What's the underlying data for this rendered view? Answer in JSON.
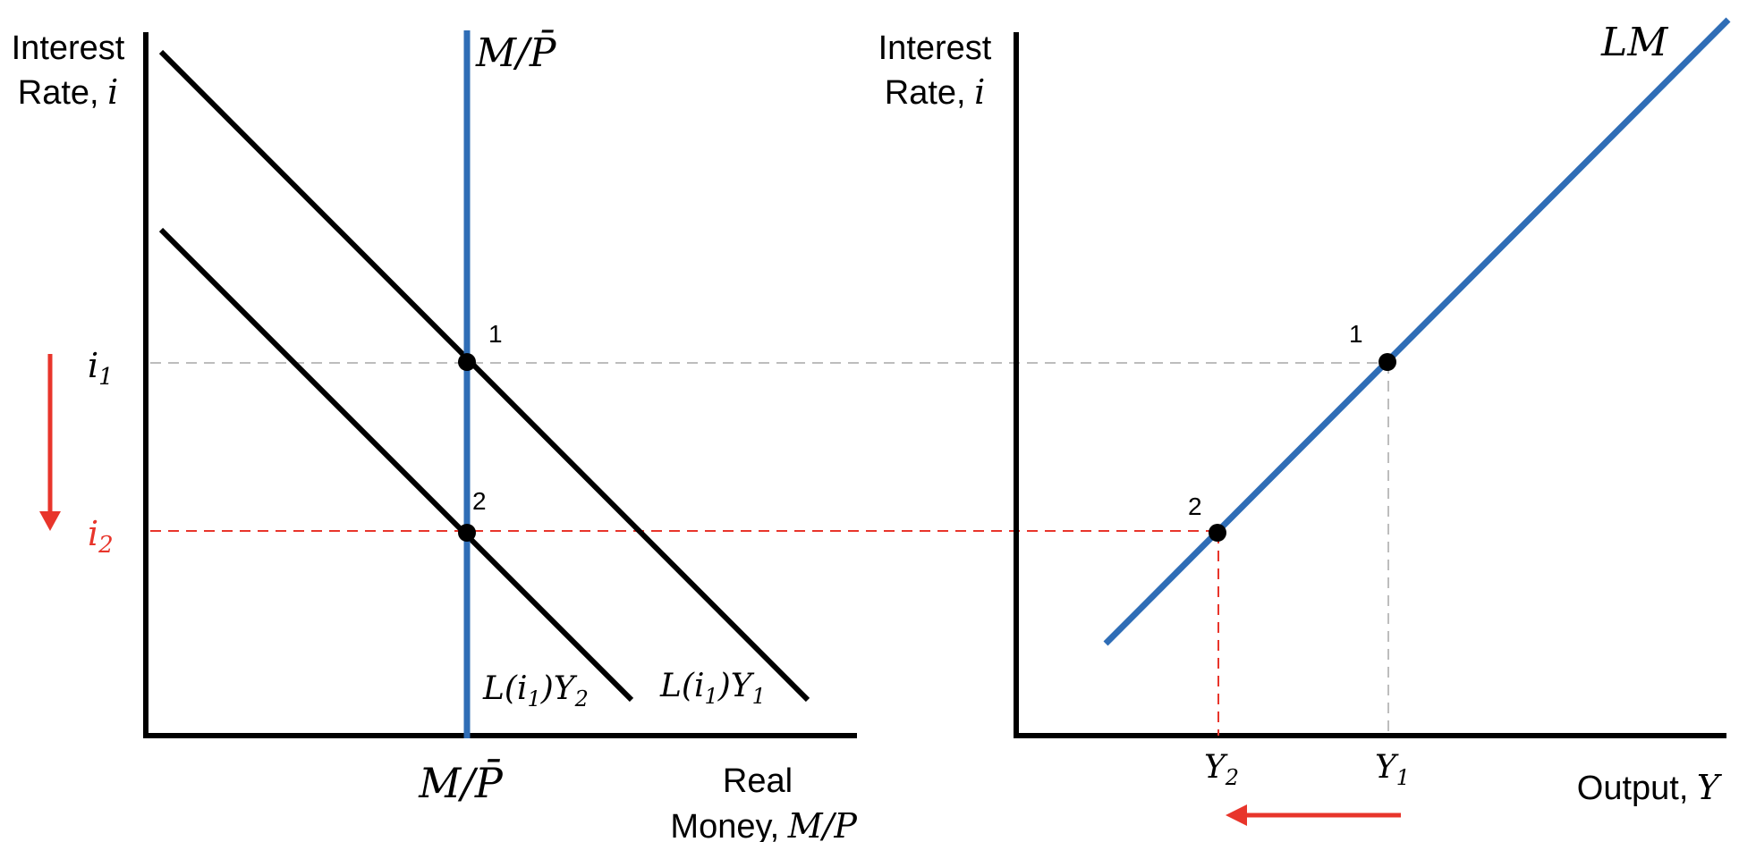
{
  "colors": {
    "axis": "#000000",
    "curve": "#000000",
    "supply": "#2f6db6",
    "lm": "#2f6db6",
    "highlight": "#e8352b",
    "guide": "#bdbdbd"
  },
  "left_panel": {
    "y_axis_label_line1": "Interest",
    "y_axis_label_line2": "Rate,",
    "y_axis_symbol": "i",
    "x_axis_label_line1": "Real",
    "x_axis_label_line2": "Money,",
    "x_axis_symbol": "M/P",
    "supply_label_top": "M/P̄",
    "supply_label_bottom": "M/P̄",
    "tick_i1": "i",
    "tick_i1_sub": "1",
    "tick_i2": "i",
    "tick_i2_sub": "2",
    "curve_high_label": "L(i",
    "curve_high_sub1": "1",
    "curve_high_mid": ")Y",
    "curve_high_sub2": "1",
    "curve_low_label": "L(i",
    "curve_low_sub1": "1",
    "curve_low_mid": ")Y",
    "curve_low_sub2": "2",
    "point_1": "1",
    "point_2": "2"
  },
  "right_panel": {
    "y_axis_label_line1": "Interest",
    "y_axis_label_line2": "Rate,",
    "y_axis_symbol": "i",
    "x_axis_label": "Output,",
    "x_axis_symbol": "Y",
    "curve_label": "LM",
    "tick_y1": "Y",
    "tick_y1_sub": "1",
    "tick_y2": "Y",
    "tick_y2_sub": "2",
    "point_1": "1",
    "point_2": "2"
  }
}
